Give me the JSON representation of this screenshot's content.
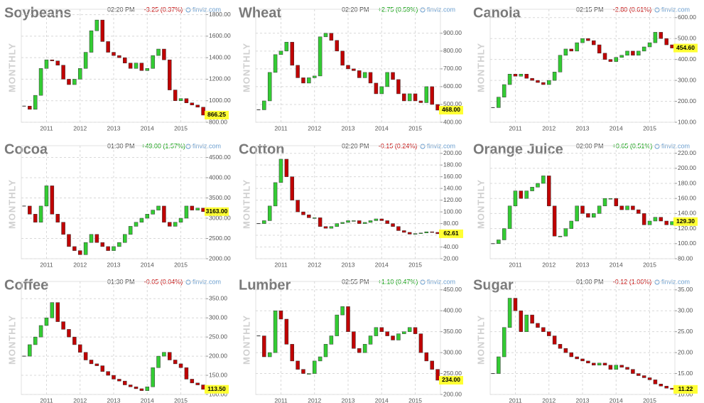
{
  "chart_data": [
    {
      "type": "candlestick",
      "title": "Soybeans",
      "time": "02:20 PM",
      "change": "-3.25 (0.37%)",
      "change_color": "#c00000",
      "source": "finviz.com",
      "period": "MONTHLY",
      "categories": [
        null,
        null,
        null,
        null,
        "2011",
        null,
        null,
        null,
        null,
        null,
        "2012",
        null,
        null,
        null,
        null,
        null,
        "2013",
        null,
        null,
        null,
        null,
        null,
        "2014",
        null,
        null,
        null,
        null,
        null,
        "2015",
        null,
        null,
        null,
        null
      ],
      "values": [
        950,
        920,
        1050,
        1300,
        1380,
        1370,
        1330,
        1200,
        1150,
        1200,
        1300,
        1450,
        1650,
        1750,
        1550,
        1450,
        1420,
        1400,
        1350,
        1300,
        1350,
        1280,
        1300,
        1420,
        1480,
        1380,
        1100,
        1000,
        1020,
        980,
        960,
        940,
        866.25
      ],
      "value_labels": {
        "32": "866.25"
      },
      "up_color": "#33cc33",
      "down_color": "#c00000",
      "grid": true,
      "ylim": [
        800,
        1850
      ],
      "yticks": [
        {
          "value": 800,
          "label": "800.00"
        },
        {
          "value": 1000,
          "label": "1000.00"
        },
        {
          "value": 1200,
          "label": "1200.00"
        },
        {
          "value": 1400,
          "label": "1400.00"
        },
        {
          "value": 1600,
          "label": "1600.00"
        },
        {
          "value": 1800,
          "label": "1800.00"
        }
      ]
    },
    {
      "type": "candlestick",
      "title": "Wheat",
      "time": "02:20 PM",
      "change": "+2.75 (0.59%)",
      "change_color": "#009900",
      "source": "finviz.com",
      "period": "MONTHLY",
      "categories": [
        null,
        null,
        null,
        null,
        "2011",
        null,
        null,
        null,
        null,
        null,
        "2012",
        null,
        null,
        null,
        null,
        null,
        "2013",
        null,
        null,
        null,
        null,
        null,
        "2014",
        null,
        null,
        null,
        null,
        null,
        "2015",
        null,
        null,
        null,
        null
      ],
      "values": [
        470,
        520,
        680,
        780,
        800,
        850,
        720,
        650,
        620,
        650,
        660,
        880,
        900,
        860,
        800,
        720,
        700,
        690,
        650,
        680,
        620,
        560,
        600,
        680,
        640,
        560,
        520,
        560,
        520,
        510,
        600,
        500,
        468
      ],
      "value_labels": {
        "32": "468.00"
      },
      "up_color": "#33cc33",
      "down_color": "#c00000",
      "grid": true,
      "ylim": [
        400,
        1035
      ],
      "yticks": [
        {
          "value": 400,
          "label": "400.00"
        },
        {
          "value": 500,
          "label": "500.00"
        },
        {
          "value": 600,
          "label": "600.00"
        },
        {
          "value": 700,
          "label": "700.00"
        },
        {
          "value": 800,
          "label": "800.00"
        },
        {
          "value": 900,
          "label": "900.00"
        }
      ]
    },
    {
      "type": "candlestick",
      "title": "Canola",
      "time": "02:15 PM",
      "change": "-2.80 (0.61%)",
      "change_color": "#c00000",
      "source": "finviz.com",
      "period": "MONTHLY",
      "categories": [
        null,
        null,
        null,
        null,
        "2011",
        null,
        null,
        null,
        null,
        null,
        "2012",
        null,
        null,
        null,
        null,
        null,
        "2013",
        null,
        null,
        null,
        null,
        null,
        "2014",
        null,
        null,
        null,
        null,
        null,
        "2015",
        null,
        null,
        null,
        null
      ],
      "values": [
        170,
        220,
        280,
        330,
        320,
        330,
        310,
        300,
        290,
        280,
        300,
        340,
        420,
        450,
        440,
        480,
        500,
        490,
        470,
        430,
        400,
        390,
        410,
        420,
        440,
        420,
        440,
        460,
        480,
        530,
        500,
        470,
        454.6
      ],
      "value_labels": {
        "32": "454.60"
      },
      "up_color": "#33cc33",
      "down_color": "#c00000",
      "grid": true,
      "ylim": [
        100,
        640
      ],
      "yticks": [
        {
          "value": 100,
          "label": "100.00"
        },
        {
          "value": 200,
          "label": "200.00"
        },
        {
          "value": 300,
          "label": "300.00"
        },
        {
          "value": 400,
          "label": "400.00"
        },
        {
          "value": 500,
          "label": "500.00"
        },
        {
          "value": 600,
          "label": "600.00"
        }
      ]
    },
    {
      "type": "candlestick",
      "title": "Cocoa",
      "time": "01:30 PM",
      "change": "+49.00 (1.57%)",
      "change_color": "#009900",
      "source": "finviz.com",
      "period": "MONTHLY",
      "categories": [
        null,
        null,
        null,
        null,
        "2011",
        null,
        null,
        null,
        null,
        null,
        "2012",
        null,
        null,
        null,
        null,
        null,
        "2013",
        null,
        null,
        null,
        null,
        null,
        "2014",
        null,
        null,
        null,
        null,
        null,
        "2015",
        null,
        null,
        null,
        null
      ],
      "values": [
        3300,
        3100,
        2900,
        3300,
        3800,
        3100,
        2900,
        2600,
        2300,
        2200,
        2100,
        2400,
        2600,
        2400,
        2300,
        2200,
        2300,
        2400,
        2600,
        2800,
        2900,
        3000,
        3100,
        3200,
        3300,
        2900,
        2800,
        2900,
        3000,
        3300,
        3200,
        3250,
        3163
      ],
      "value_labels": {
        "32": "3163.00"
      },
      "up_color": "#33cc33",
      "down_color": "#c00000",
      "grid": true,
      "ylim": [
        2000,
        4790
      ],
      "yticks": [
        {
          "value": 2000,
          "label": "2000.00"
        },
        {
          "value": 2500,
          "label": "2500.00"
        },
        {
          "value": 3000,
          "label": "3000.00"
        },
        {
          "value": 3500,
          "label": "3500.00"
        },
        {
          "value": 4000,
          "label": "4000.00"
        },
        {
          "value": 4500,
          "label": "4500.00"
        }
      ]
    },
    {
      "type": "candlestick",
      "title": "Cotton",
      "time": "02:20 PM",
      "change": "-0.15 (0.24%)",
      "change_color": "#c00000",
      "source": "finviz.com",
      "period": "MONTHLY",
      "categories": [
        null,
        null,
        null,
        null,
        "2011",
        null,
        null,
        null,
        null,
        null,
        "2012",
        null,
        null,
        null,
        null,
        null,
        "2013",
        null,
        null,
        null,
        null,
        null,
        "2014",
        null,
        null,
        null,
        null,
        null,
        "2015",
        null,
        null,
        null,
        null
      ],
      "values": [
        80,
        85,
        110,
        150,
        190,
        160,
        120,
        100,
        95,
        90,
        90,
        75,
        72,
        75,
        80,
        82,
        85,
        85,
        80,
        82,
        85,
        88,
        85,
        80,
        75,
        68,
        65,
        62,
        63,
        64,
        66,
        65,
        62.61
      ],
      "value_labels": {
        "32": "62.61"
      },
      "up_color": "#33cc33",
      "down_color": "#c00000",
      "grid": true,
      "ylim": [
        20,
        213
      ],
      "yticks": [
        {
          "value": 20,
          "label": "20.00"
        },
        {
          "value": 40,
          "label": "40.00"
        },
        {
          "value": 60,
          "label": "60.00"
        },
        {
          "value": 80,
          "label": "80.00"
        },
        {
          "value": 100,
          "label": "100.00"
        },
        {
          "value": 120,
          "label": "120.00"
        },
        {
          "value": 140,
          "label": "140.00"
        },
        {
          "value": 160,
          "label": "160.00"
        },
        {
          "value": 180,
          "label": "180.00"
        },
        {
          "value": 200,
          "label": "200.00"
        }
      ]
    },
    {
      "type": "candlestick",
      "title": "Orange Juice",
      "time": "02:00 PM",
      "change": "+0.65 (0.51%)",
      "change_color": "#009900",
      "source": "finviz.com",
      "period": "MONTHLY",
      "categories": [
        null,
        null,
        null,
        null,
        "2011",
        null,
        null,
        null,
        null,
        null,
        "2012",
        null,
        null,
        null,
        null,
        null,
        "2013",
        null,
        null,
        null,
        null,
        null,
        "2014",
        null,
        null,
        null,
        null,
        null,
        "2015",
        null,
        null,
        null,
        null
      ],
      "values": [
        100,
        105,
        120,
        150,
        170,
        160,
        170,
        175,
        180,
        190,
        150,
        110,
        110,
        120,
        130,
        150,
        140,
        135,
        140,
        150,
        160,
        160,
        150,
        145,
        150,
        145,
        140,
        125,
        130,
        135,
        130,
        125,
        129.3
      ],
      "value_labels": {
        "32": "129.30"
      },
      "up_color": "#33cc33",
      "down_color": "#c00000",
      "grid": true,
      "ylim": [
        80,
        230
      ],
      "yticks": [
        {
          "value": 80,
          "label": "80.00"
        },
        {
          "value": 100,
          "label": "100.00"
        },
        {
          "value": 120,
          "label": "120.00"
        },
        {
          "value": 140,
          "label": "140.00"
        },
        {
          "value": 160,
          "label": "160.00"
        },
        {
          "value": 180,
          "label": "180.00"
        },
        {
          "value": 200,
          "label": "200.00"
        },
        {
          "value": 220,
          "label": "220.00"
        }
      ]
    },
    {
      "type": "candlestick",
      "title": "Coffee",
      "time": "01:30 PM",
      "change": "-0.05 (0.04%)",
      "change_color": "#c00000",
      "source": "finviz.com",
      "period": "MONTHLY",
      "categories": [
        null,
        null,
        null,
        null,
        "2011",
        null,
        null,
        null,
        null,
        null,
        "2012",
        null,
        null,
        null,
        null,
        null,
        "2013",
        null,
        null,
        null,
        null,
        null,
        "2014",
        null,
        null,
        null,
        null,
        null,
        "2015",
        null,
        null,
        null,
        null
      ],
      "values": [
        200,
        230,
        250,
        280,
        300,
        340,
        290,
        270,
        250,
        230,
        210,
        190,
        180,
        175,
        160,
        150,
        140,
        135,
        125,
        120,
        115,
        110,
        120,
        170,
        200,
        210,
        190,
        180,
        170,
        140,
        130,
        125,
        113.5
      ],
      "value_labels": {
        "32": "113.50"
      },
      "up_color": "#33cc33",
      "down_color": "#c00000",
      "grid": true,
      "ylim": [
        100,
        395
      ],
      "yticks": [
        {
          "value": 100,
          "label": "100.00"
        },
        {
          "value": 150,
          "label": "150.00"
        },
        {
          "value": 200,
          "label": "200.00"
        },
        {
          "value": 250,
          "label": "250.00"
        },
        {
          "value": 300,
          "label": "300.00"
        },
        {
          "value": 350,
          "label": "350.00"
        }
      ]
    },
    {
      "type": "candlestick",
      "title": "Lumber",
      "time": "02:55 PM",
      "change": "+1.10 (0.47%)",
      "change_color": "#009900",
      "source": "finviz.com",
      "period": "MONTHLY",
      "categories": [
        null,
        null,
        null,
        null,
        "2011",
        null,
        null,
        null,
        null,
        null,
        "2012",
        null,
        null,
        null,
        null,
        null,
        "2013",
        null,
        null,
        null,
        null,
        null,
        "2014",
        null,
        null,
        null,
        null,
        null,
        "2015",
        null,
        null,
        null,
        null
      ],
      "values": [
        340,
        290,
        300,
        400,
        380,
        320,
        280,
        260,
        250,
        250,
        280,
        290,
        320,
        340,
        390,
        410,
        350,
        310,
        300,
        320,
        340,
        360,
        350,
        340,
        330,
        345,
        350,
        360,
        345,
        300,
        280,
        260,
        234
      ],
      "value_labels": {
        "32": "234.00"
      },
      "up_color": "#33cc33",
      "down_color": "#c00000",
      "grid": true,
      "ylim": [
        200,
        470
      ],
      "yticks": [
        {
          "value": 200,
          "label": "200.00"
        },
        {
          "value": 250,
          "label": "250.00"
        },
        {
          "value": 300,
          "label": "300.00"
        },
        {
          "value": 350,
          "label": "350.00"
        },
        {
          "value": 400,
          "label": "400.00"
        },
        {
          "value": 450,
          "label": "450.00"
        }
      ]
    },
    {
      "type": "candlestick",
      "title": "Sugar",
      "time": "01:00 PM",
      "change": "-0.12 (1.06%)",
      "change_color": "#c00000",
      "source": "finviz.com",
      "period": "MONTHLY",
      "categories": [
        null,
        null,
        null,
        null,
        "2011",
        null,
        null,
        null,
        null,
        null,
        "2012",
        null,
        null,
        null,
        null,
        null,
        "2013",
        null,
        null,
        null,
        null,
        null,
        "2014",
        null,
        null,
        null,
        null,
        null,
        "2015",
        null,
        null,
        null,
        null
      ],
      "values": [
        15,
        19,
        26,
        33,
        30,
        25,
        29,
        27,
        26,
        25,
        24,
        22,
        21,
        20,
        19,
        18.5,
        18,
        17.5,
        17,
        17.5,
        17,
        16,
        17,
        16.5,
        16,
        15,
        14.5,
        14,
        13.5,
        12.5,
        12,
        11.5,
        11.22
      ],
      "value_labels": {
        "32": "11.22"
      },
      "up_color": "#33cc33",
      "down_color": "#c00000",
      "grid": true,
      "ylim": [
        10,
        37
      ],
      "yticks": [
        {
          "value": 10,
          "label": "10.00"
        },
        {
          "value": 15,
          "label": "15.00"
        },
        {
          "value": 20,
          "label": "20.00"
        },
        {
          "value": 25,
          "label": "25.00"
        },
        {
          "value": 30,
          "label": "30.00"
        },
        {
          "value": 35,
          "label": "35.00"
        }
      ]
    }
  ]
}
